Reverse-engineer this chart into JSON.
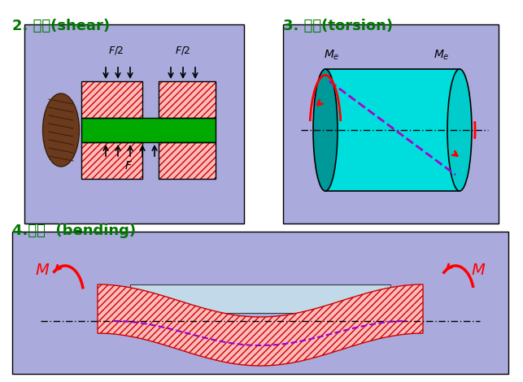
{
  "bg_color": "#ffffff",
  "title1": "2. 剪切(shear)",
  "title2": "3. 扭转(torsion)",
  "title3": "4.弯曲  (bending)",
  "title_color": "#007700",
  "panel_bg": "#aaaadd",
  "shear_box_bg": "#aaaadd",
  "torsion_box_bg": "#aaaadd",
  "bending_box_bg": "#aaaadd",
  "hatch_color": "#ff0000",
  "green_color": "#00aa00",
  "cyan_color": "#00eeee",
  "label_color": "#000000",
  "italic_label_color": "#000000",
  "arrow_color": "#ff0000",
  "dashed_color": "#9900cc",
  "F_label": "F",
  "F2_label": "F/2",
  "Me_label": "M_e",
  "M_label": "M"
}
